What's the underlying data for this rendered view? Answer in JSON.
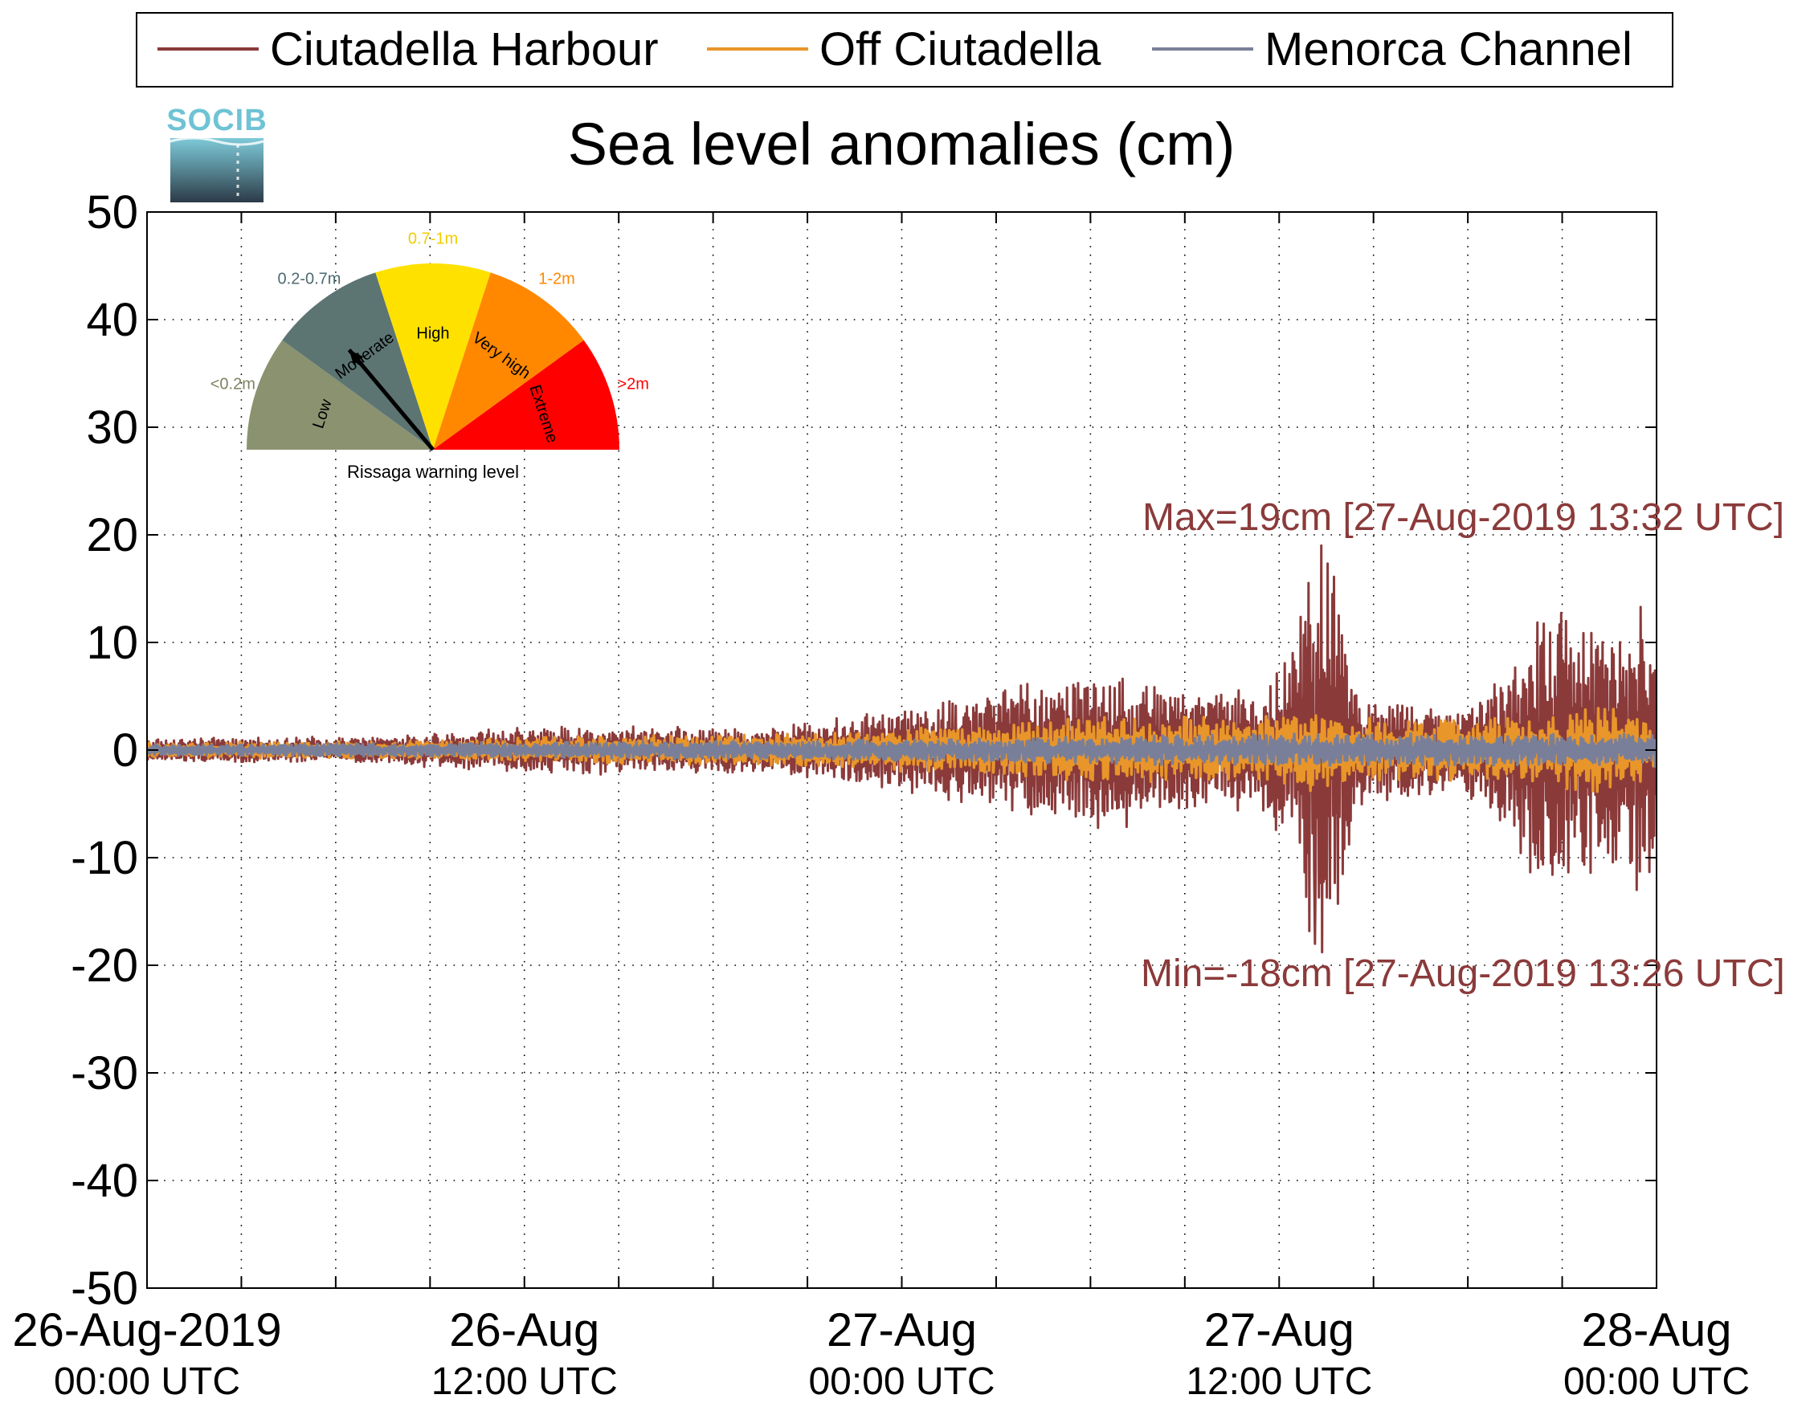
{
  "logo_text": "SOCIB",
  "chart_data": {
    "type": "line",
    "title": "Sea level anomalies (cm)",
    "xlabel": "",
    "ylabel": "",
    "ylim": [
      -50,
      50
    ],
    "y_ticks": [
      50,
      40,
      30,
      20,
      10,
      0,
      -10,
      -20,
      -30,
      -40,
      -50
    ],
    "x_range_hours": [
      0,
      48
    ],
    "x_ticks": [
      {
        "hours": 0,
        "line1": "26-Aug-2019",
        "line2": "00:00 UTC"
      },
      {
        "hours": 12,
        "line1": "26-Aug",
        "line2": "12:00 UTC"
      },
      {
        "hours": 24,
        "line1": "27-Aug",
        "line2": "00:00 UTC"
      },
      {
        "hours": 36,
        "line1": "27-Aug",
        "line2": "12:00 UTC"
      },
      {
        "hours": 48,
        "line1": "28-Aug",
        "line2": "00:00 UTC"
      }
    ],
    "minor_x_tick_hours": [
      3,
      6,
      9,
      15,
      18,
      21,
      27,
      30,
      33,
      39,
      42,
      45
    ],
    "grid": true,
    "legend_position": "top",
    "series": [
      {
        "name": "Ciutadella Harbour",
        "color": "#8b3a3a",
        "envelope": [
          [
            0,
            1
          ],
          [
            4,
            1
          ],
          [
            8,
            1.2
          ],
          [
            12,
            2
          ],
          [
            16,
            2
          ],
          [
            20,
            2
          ],
          [
            24,
            3.5
          ],
          [
            26,
            4.5
          ],
          [
            28,
            6
          ],
          [
            30,
            7
          ],
          [
            32,
            6
          ],
          [
            34,
            5
          ],
          [
            35.5,
            5
          ],
          [
            36.5,
            11
          ],
          [
            37.3,
            19
          ],
          [
            38,
            12
          ],
          [
            38.5,
            5
          ],
          [
            40,
            4
          ],
          [
            42,
            4
          ],
          [
            43,
            6
          ],
          [
            44,
            11
          ],
          [
            45,
            13
          ],
          [
            46.5,
            10
          ],
          [
            47.5,
            12
          ],
          [
            48,
            10
          ]
        ],
        "anchor_points": [
          [
            37.13,
            -18
          ],
          [
            37.33,
            19
          ]
        ]
      },
      {
        "name": "Off Ciutadella",
        "color": "#e8952a",
        "envelope": [
          [
            0,
            0.7
          ],
          [
            8,
            0.8
          ],
          [
            12,
            1.2
          ],
          [
            20,
            1.5
          ],
          [
            24,
            2
          ],
          [
            30,
            3
          ],
          [
            35,
            3
          ],
          [
            36.5,
            4
          ],
          [
            37.3,
            4
          ],
          [
            38.5,
            3
          ],
          [
            44,
            3
          ],
          [
            46,
            4
          ],
          [
            48,
            3
          ]
        ]
      },
      {
        "name": "Menorca Channel",
        "color": "#7a7f99",
        "envelope": [
          [
            0,
            0.5
          ],
          [
            12,
            0.7
          ],
          [
            24,
            1
          ],
          [
            36,
            1.5
          ],
          [
            48,
            1.5
          ]
        ]
      }
    ],
    "annotations": [
      {
        "text": "Max=19cm [27-Aug-2019 13:32 UTC]",
        "color": "#8b3a3a"
      },
      {
        "text": "Min=-18cm [27-Aug-2019 13:26 UTC]",
        "color": "#8b3a3a"
      }
    ]
  },
  "gauge": {
    "caption": "Rissaga warning level",
    "needle_sector": "Moderate",
    "sectors": [
      {
        "label": "Low",
        "range": "<0.2m",
        "color": "#8a9270",
        "range_color": "#7d8460"
      },
      {
        "label": "Moderate",
        "range": "0.2-0.7m",
        "color": "#5c7573",
        "range_color": "#4d6a70"
      },
      {
        "label": "High",
        "range": "0.7-1m",
        "color": "#ffe100",
        "range_color": "#f2cc00"
      },
      {
        "label": "Very high",
        "range": "1-2m",
        "color": "#ff8800",
        "range_color": "#ff8800"
      },
      {
        "label": "Extreme",
        "range": ">2m",
        "color": "#ff0000",
        "range_color": "#ff0000"
      }
    ]
  }
}
